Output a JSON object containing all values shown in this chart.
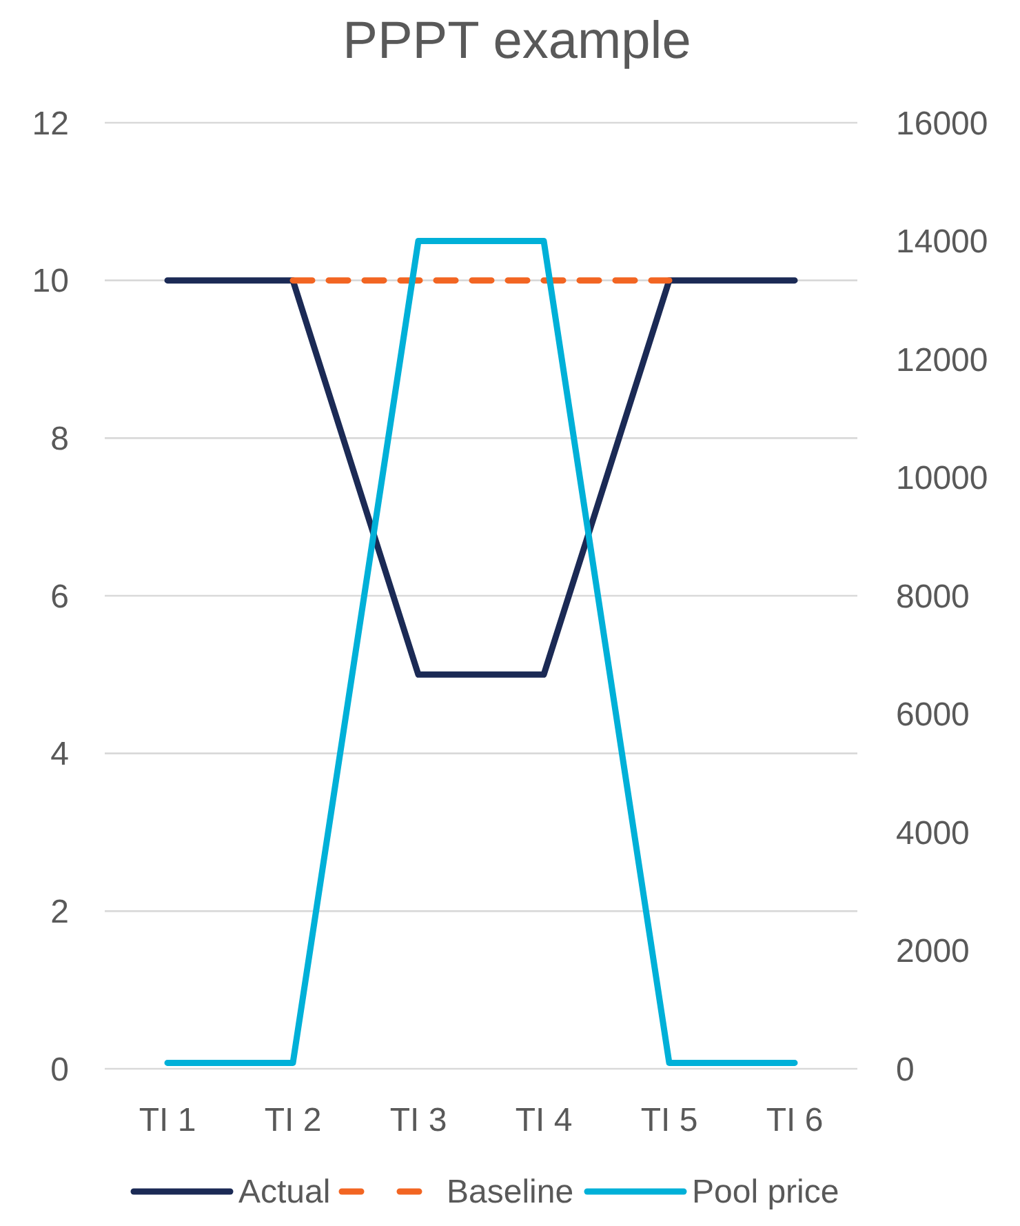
{
  "chart_data": {
    "type": "line",
    "title": "PPPT example",
    "categories": [
      "TI 1",
      "TI 2",
      "TI 3",
      "TI 4",
      "TI 5",
      "TI 6"
    ],
    "series": [
      {
        "name": "Actual",
        "color": "#1b2a55",
        "values": [
          10,
          10,
          5,
          5,
          10,
          10
        ]
      },
      {
        "name": "Baseline",
        "color": "#f26522",
        "line_style": "dashed",
        "values": [
          null,
          10,
          10,
          10,
          10,
          null
        ]
      },
      {
        "name": "Pool price",
        "color": "#00b0d8",
        "axis": "y2",
        "values": [
          100,
          100,
          14000,
          14000,
          100,
          100
        ]
      }
    ],
    "ylim": [
      0,
      12
    ],
    "yticks": [
      0,
      2,
      4,
      6,
      8,
      10,
      12
    ],
    "y2lim": [
      0,
      16000
    ],
    "y2ticks": [
      0,
      2000,
      4000,
      6000,
      8000,
      10000,
      12000,
      14000,
      16000
    ],
    "grid": "y",
    "legend": "bottom",
    "line_style": "solid",
    "marker": "none"
  }
}
